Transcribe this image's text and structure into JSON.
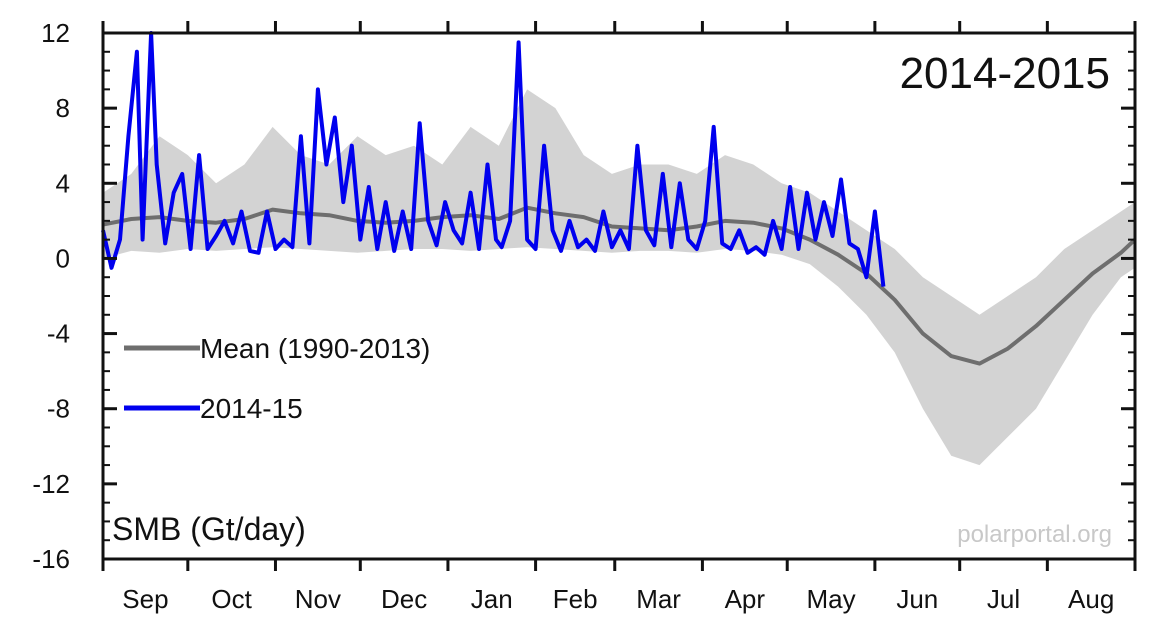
{
  "chart_data": {
    "type": "line",
    "title": "2014-2015",
    "ylabel": "SMB (Gt/day)",
    "xlabel": "",
    "credit": "polarportal.org",
    "ylim": [
      -16,
      12
    ],
    "yticks": [
      12,
      8,
      4,
      0,
      -4,
      -8,
      -12,
      -16
    ],
    "ytick_labels": [
      "12",
      "8",
      "4",
      "0",
      "-4",
      "-8",
      "-12",
      "-16"
    ],
    "xlim": [
      0,
      365
    ],
    "month_labels": [
      "Sep",
      "Oct",
      "Nov",
      "Dec",
      "Jan",
      "Feb",
      "Mar",
      "Apr",
      "May",
      "Jun",
      "Jul",
      "Aug"
    ],
    "month_starts": [
      0,
      30,
      61,
      91,
      122,
      153,
      181,
      212,
      242,
      273,
      303,
      334
    ],
    "grid": false,
    "legend_position": "left-middle",
    "colors": {
      "mean": "#6e6e6e",
      "series": "#0000ee",
      "band": "#d3d3d3"
    },
    "series": [
      {
        "name": "Mean (1990-2013)",
        "x": [
          0,
          10,
          20,
          30,
          40,
          50,
          60,
          70,
          80,
          90,
          100,
          110,
          120,
          130,
          140,
          150,
          160,
          170,
          180,
          190,
          200,
          210,
          220,
          230,
          240,
          250,
          260,
          270,
          280,
          290,
          300,
          310,
          320,
          330,
          340,
          350,
          360,
          365
        ],
        "values": [
          1.8,
          2.1,
          2.2,
          2.0,
          1.9,
          2.1,
          2.6,
          2.4,
          2.3,
          2.0,
          1.9,
          2.0,
          2.2,
          2.3,
          2.1,
          2.7,
          2.4,
          2.2,
          1.7,
          1.6,
          1.5,
          1.7,
          2.0,
          1.9,
          1.6,
          1.0,
          0.2,
          -0.8,
          -2.2,
          -4.0,
          -5.2,
          -5.6,
          -4.8,
          -3.6,
          -2.2,
          -0.8,
          0.3,
          1.0
        ]
      },
      {
        "name": "2014-15",
        "x": [
          0,
          3,
          6,
          9,
          12,
          14,
          17,
          19,
          22,
          25,
          28,
          31,
          34,
          37,
          40,
          43,
          46,
          49,
          52,
          55,
          58,
          61,
          64,
          67,
          70,
          73,
          76,
          79,
          82,
          85,
          88,
          91,
          94,
          97,
          100,
          103,
          106,
          109,
          112,
          115,
          118,
          121,
          124,
          127,
          130,
          133,
          136,
          139,
          141,
          144,
          147,
          150,
          153,
          156,
          159,
          162,
          165,
          168,
          171,
          174,
          177,
          180,
          183,
          186,
          189,
          192,
          195,
          198,
          201,
          204,
          207,
          210,
          213,
          216,
          219,
          222,
          225,
          228,
          231,
          234,
          237,
          240,
          243,
          246,
          249,
          252,
          255,
          258,
          261,
          264,
          267,
          270,
          273,
          276
        ],
        "values": [
          1.5,
          -0.5,
          1.0,
          6.5,
          11.0,
          1.0,
          12.0,
          5.0,
          0.8,
          3.5,
          4.5,
          0.5,
          5.5,
          0.5,
          1.2,
          2.0,
          0.8,
          2.5,
          0.4,
          0.3,
          2.5,
          0.5,
          1.0,
          0.6,
          6.5,
          0.8,
          9.0,
          5.0,
          7.5,
          3.0,
          6.0,
          1.0,
          3.8,
          0.5,
          3.0,
          0.4,
          2.5,
          0.5,
          7.2,
          2.0,
          0.7,
          3.0,
          1.5,
          0.8,
          3.5,
          0.5,
          5.0,
          1.0,
          0.6,
          2.0,
          11.5,
          1.0,
          0.5,
          6.0,
          1.5,
          0.4,
          2.0,
          0.6,
          1.0,
          0.4,
          2.5,
          0.6,
          1.5,
          0.5,
          6.0,
          1.5,
          0.7,
          4.5,
          0.6,
          4.0,
          1.0,
          0.5,
          2.0,
          7.0,
          0.8,
          0.5,
          1.5,
          0.3,
          0.6,
          0.2,
          2.0,
          0.5,
          3.8,
          0.5,
          3.5,
          1.0,
          3.0,
          1.2,
          4.2,
          0.8,
          0.5,
          -1.0,
          2.5,
          -1.5
        ]
      }
    ],
    "band": {
      "name": "range",
      "x": [
        0,
        10,
        20,
        30,
        40,
        50,
        60,
        70,
        80,
        90,
        100,
        110,
        120,
        130,
        140,
        150,
        160,
        170,
        180,
        190,
        200,
        210,
        220,
        230,
        240,
        250,
        260,
        270,
        280,
        290,
        300,
        310,
        320,
        330,
        340,
        350,
        360,
        365
      ],
      "upper": [
        3.5,
        4.5,
        6.5,
        5.5,
        4.0,
        5.0,
        7.0,
        5.5,
        5.0,
        6.5,
        5.5,
        6.0,
        5.0,
        7.0,
        6.0,
        9.0,
        8.0,
        5.5,
        4.5,
        5.0,
        5.0,
        4.5,
        5.5,
        5.0,
        4.0,
        3.5,
        2.5,
        1.5,
        0.5,
        -1.0,
        -2.0,
        -3.0,
        -2.0,
        -1.0,
        0.5,
        1.5,
        2.5,
        3.0
      ],
      "lower": [
        0.0,
        0.4,
        0.3,
        0.5,
        0.4,
        0.5,
        0.6,
        0.5,
        0.4,
        0.3,
        0.4,
        0.5,
        0.5,
        0.4,
        0.5,
        0.6,
        0.5,
        0.4,
        0.3,
        0.4,
        0.4,
        0.3,
        0.5,
        0.4,
        0.2,
        -0.3,
        -1.5,
        -3.0,
        -5.0,
        -8.0,
        -10.5,
        -11.0,
        -9.5,
        -8.0,
        -5.5,
        -3.0,
        -1.0,
        -0.5
      ]
    }
  }
}
